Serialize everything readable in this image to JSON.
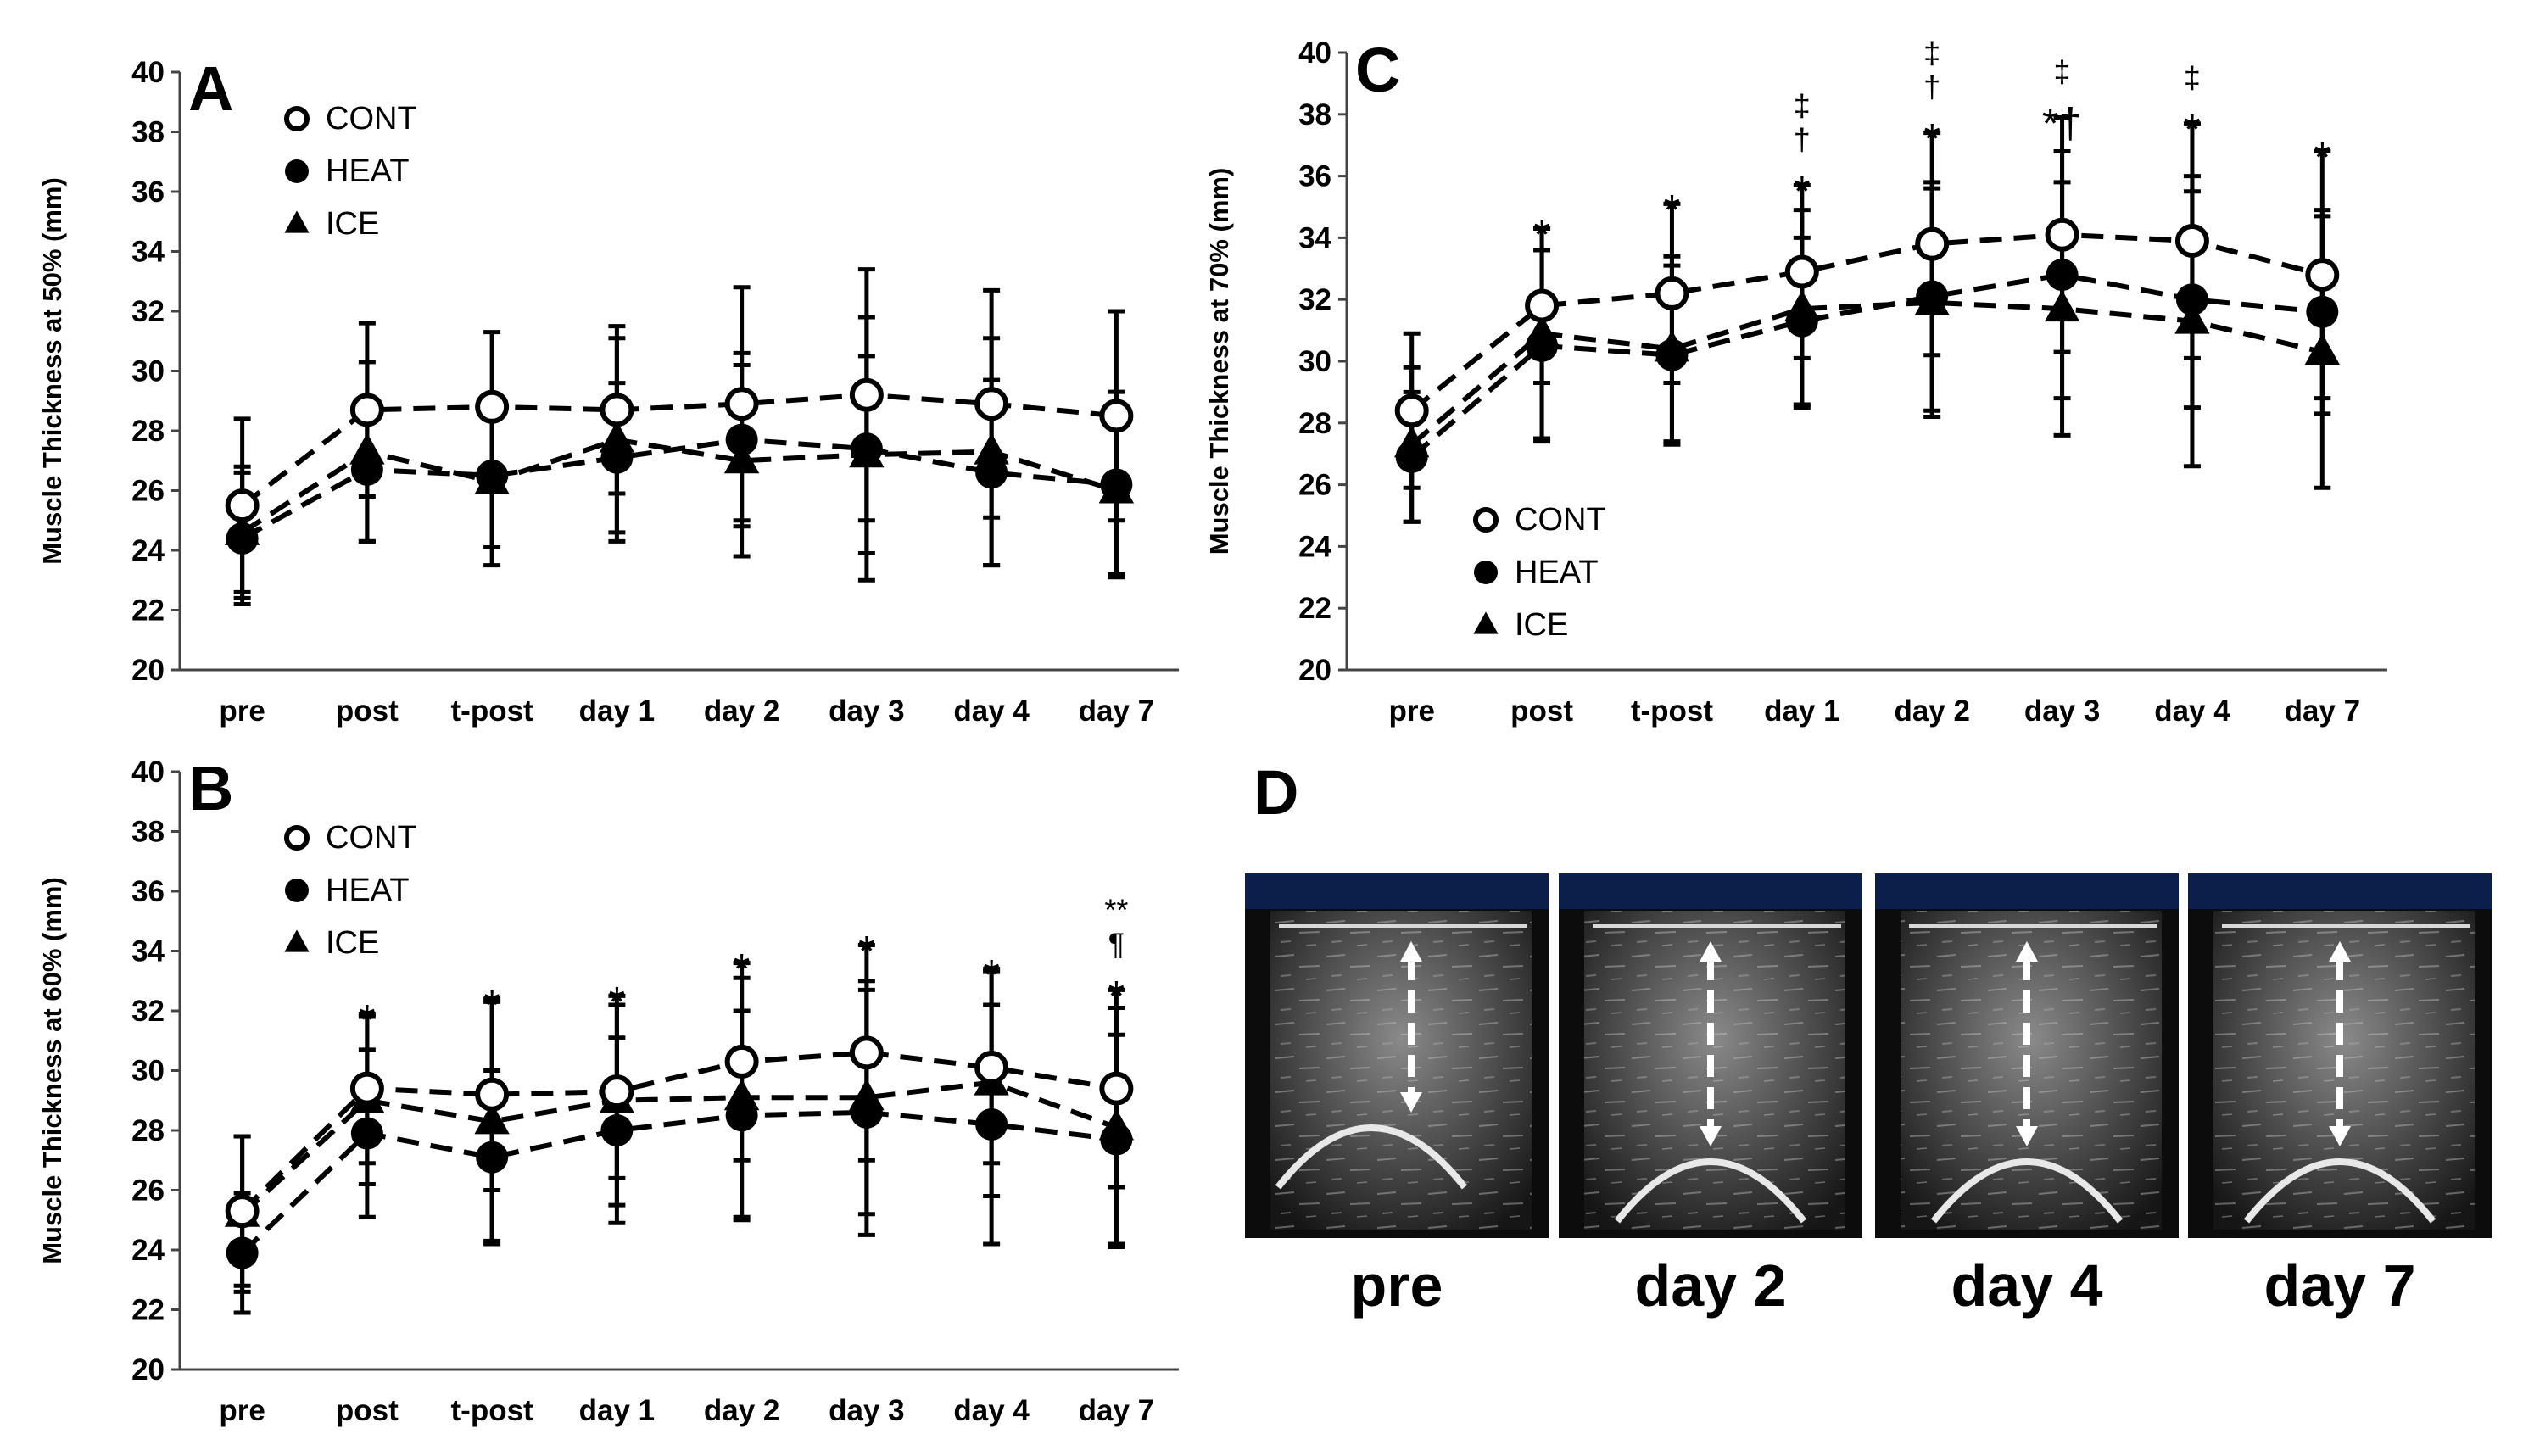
{
  "chart_data": [
    {
      "id": "A",
      "panel_letter": "A",
      "type": "line",
      "ylabel": "Muscle Thickness at 50% (mm)",
      "ylim": [
        20,
        40
      ],
      "yticks": [
        "20",
        "22",
        "24",
        "26",
        "28",
        "30",
        "32",
        "34",
        "36",
        "38",
        "40"
      ],
      "categories": [
        "pre",
        "post",
        "t-post",
        "day 1",
        "day 2",
        "day 3",
        "day 4",
        "day 7"
      ],
      "legend_placement": "top-left",
      "grid": false,
      "series": [
        {
          "name": "CONT",
          "marker": "open-circle",
          "values": [
            25.5,
            28.7,
            28.8,
            28.7,
            28.9,
            29.2,
            28.9,
            28.5
          ],
          "error": [
            2.9,
            2.9,
            2.5,
            2.8,
            3.9,
            4.2,
            3.8,
            3.5
          ]
        },
        {
          "name": "HEAT",
          "marker": "filled-circle",
          "values": [
            24.4,
            26.7,
            26.5,
            27.1,
            27.7,
            27.4,
            26.6,
            26.2
          ],
          "error": [
            2.2,
            2.4,
            2.4,
            2.5,
            2.9,
            4.4,
            3.1,
            3.1
          ]
        },
        {
          "name": "ICE",
          "marker": "triangle",
          "values": [
            24.6,
            27.3,
            26.3,
            27.7,
            27.0,
            27.2,
            27.3,
            26.0
          ],
          "error": [
            2.2,
            3.0,
            2.8,
            3.4,
            3.2,
            3.3,
            3.8,
            2.8
          ]
        }
      ],
      "annotations": []
    },
    {
      "id": "B",
      "panel_letter": "B",
      "type": "line",
      "ylabel": "Muscle Thickness at 60% (mm)",
      "ylim": [
        20,
        40
      ],
      "yticks": [
        "20",
        "22",
        "24",
        "26",
        "28",
        "30",
        "32",
        "34",
        "36",
        "38",
        "40"
      ],
      "categories": [
        "pre",
        "post",
        "t-post",
        "day 1",
        "day 2",
        "day 3",
        "day 4",
        "day 7"
      ],
      "legend_placement": "top-left",
      "grid": false,
      "series": [
        {
          "name": "CONT",
          "marker": "open-circle",
          "values": [
            25.3,
            29.4,
            29.2,
            29.3,
            30.3,
            30.6,
            30.1,
            29.4
          ],
          "error": [
            2.5,
            2.5,
            3.2,
            2.9,
            3.3,
            3.6,
            3.2,
            3.3
          ]
        },
        {
          "name": "HEAT",
          "marker": "filled-circle",
          "values": [
            23.9,
            27.9,
            27.1,
            28.0,
            28.5,
            28.6,
            28.2,
            27.7
          ],
          "error": [
            2.0,
            2.8,
            2.9,
            3.1,
            3.5,
            4.1,
            4.0,
            3.5
          ]
        },
        {
          "name": "ICE",
          "marker": "triangle",
          "values": [
            25.2,
            29.0,
            28.3,
            29.0,
            29.1,
            29.1,
            29.6,
            28.1
          ],
          "error": [
            2.6,
            2.8,
            4.0,
            3.5,
            4.0,
            3.9,
            3.8,
            4.0
          ]
        }
      ],
      "annotations": [
        {
          "category": "post",
          "lines": [
            "*"
          ]
        },
        {
          "category": "t-post",
          "lines": [
            "*"
          ]
        },
        {
          "category": "day 1",
          "lines": [
            "*"
          ]
        },
        {
          "category": "day 2",
          "lines": [
            "*"
          ]
        },
        {
          "category": "day 3",
          "lines": [
            "*"
          ]
        },
        {
          "category": "day 4",
          "lines": [
            "*"
          ]
        },
        {
          "category": "day 7",
          "lines": [
            "**",
            "¶",
            "*"
          ]
        }
      ]
    },
    {
      "id": "C",
      "panel_letter": "C",
      "type": "line",
      "ylabel": "Muscle Thickness at 70% (mm)",
      "ylim": [
        20,
        40
      ],
      "yticks": [
        "20",
        "22",
        "24",
        "26",
        "28",
        "30",
        "32",
        "34",
        "36",
        "38",
        "40"
      ],
      "categories": [
        "pre",
        "post",
        "t-post",
        "day 1",
        "day 2",
        "day 3",
        "day 4",
        "day 7"
      ],
      "legend_placement": "bottom-left",
      "grid": false,
      "series": [
        {
          "name": "CONT",
          "marker": "open-circle",
          "values": [
            28.4,
            31.8,
            32.2,
            32.9,
            33.8,
            34.1,
            33.9,
            32.8
          ],
          "error": [
            2.5,
            2.5,
            2.9,
            2.8,
            3.6,
            3.8,
            3.8,
            4.0
          ]
        },
        {
          "name": "HEAT",
          "marker": "filled-circle",
          "values": [
            26.9,
            30.5,
            30.2,
            31.3,
            32.1,
            32.8,
            32.0,
            31.6
          ],
          "error": [
            2.1,
            3.1,
            2.9,
            2.7,
            3.7,
            4.0,
            3.5,
            3.3
          ]
        },
        {
          "name": "ICE",
          "marker": "triangle",
          "values": [
            27.3,
            30.9,
            30.4,
            31.7,
            31.9,
            31.7,
            31.3,
            30.3
          ],
          "error": [
            2.5,
            3.4,
            3.0,
            3.2,
            3.7,
            4.1,
            4.7,
            4.4
          ]
        }
      ],
      "annotations": [
        {
          "category": "post",
          "lines": [
            "*"
          ]
        },
        {
          "category": "t-post",
          "lines": [
            "*"
          ]
        },
        {
          "category": "day 1",
          "lines": [
            "‡",
            "†",
            "*"
          ]
        },
        {
          "category": "day 2",
          "lines": [
            "‡",
            "†",
            "*"
          ]
        },
        {
          "category": "day 3",
          "lines": [
            "‡",
            "*†"
          ]
        },
        {
          "category": "day 4",
          "lines": [
            "‡",
            "*"
          ]
        },
        {
          "category": "day 7",
          "lines": [
            "*"
          ]
        }
      ]
    }
  ],
  "panel_d": {
    "letter": "D",
    "images": [
      {
        "label": "pre"
      },
      {
        "label": "day 2"
      },
      {
        "label": "day 4"
      },
      {
        "label": "day 7"
      }
    ]
  }
}
